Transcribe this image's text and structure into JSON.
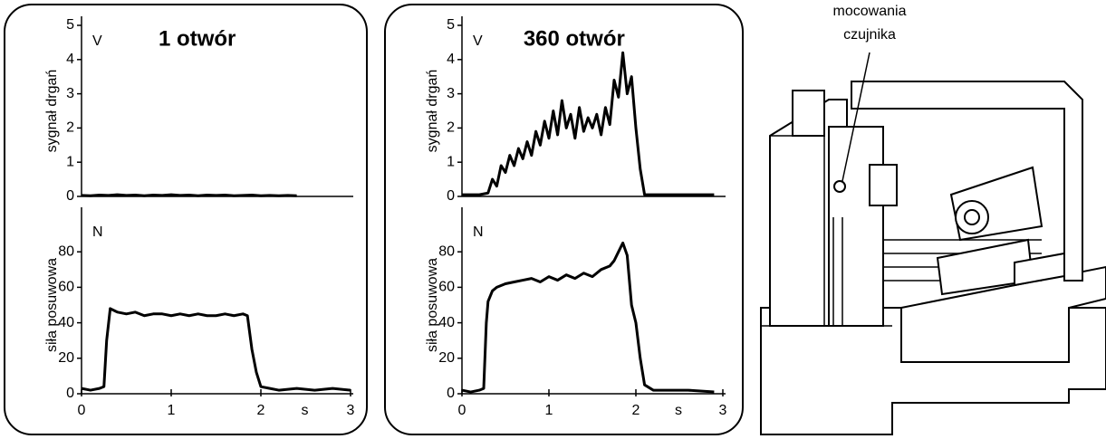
{
  "chart_data": [
    {
      "type": "line",
      "title": "1 otwór",
      "y_label": "sygnał drgań",
      "unit": "V",
      "color": "#000000",
      "xlim": [
        0,
        3
      ],
      "ylim": [
        0,
        5
      ],
      "yticks": [
        0,
        1,
        2,
        3,
        4,
        5
      ],
      "x": [
        0,
        0.1,
        0.2,
        0.3,
        0.4,
        0.5,
        0.6,
        0.7,
        0.8,
        0.9,
        1.0,
        1.1,
        1.2,
        1.3,
        1.4,
        1.5,
        1.6,
        1.7,
        1.8,
        1.9,
        2.0,
        2.1,
        2.2,
        2.3,
        2.4
      ],
      "values": [
        0.03,
        0.02,
        0.04,
        0.03,
        0.05,
        0.03,
        0.04,
        0.02,
        0.04,
        0.03,
        0.05,
        0.03,
        0.04,
        0.02,
        0.04,
        0.03,
        0.04,
        0.02,
        0.03,
        0.04,
        0.02,
        0.03,
        0.02,
        0.03,
        0.02
      ]
    },
    {
      "type": "line",
      "y_label": "siła posuwowa",
      "unit": "N",
      "x_label": "s",
      "color": "#000000",
      "xlim": [
        0,
        3
      ],
      "ylim": [
        0,
        100
      ],
      "xticks": [
        0,
        1,
        2,
        3
      ],
      "yticks": [
        0,
        20,
        40,
        60,
        80
      ],
      "x": [
        0,
        0.1,
        0.2,
        0.25,
        0.28,
        0.32,
        0.4,
        0.5,
        0.6,
        0.7,
        0.8,
        0.9,
        1.0,
        1.1,
        1.2,
        1.3,
        1.4,
        1.5,
        1.6,
        1.7,
        1.8,
        1.85,
        1.9,
        1.95,
        2.0,
        2.1,
        2.2,
        2.4,
        2.6,
        2.8,
        3.0
      ],
      "values": [
        3,
        2,
        3,
        4,
        30,
        48,
        46,
        45,
        46,
        44,
        45,
        45,
        44,
        45,
        44,
        45,
        44,
        44,
        45,
        44,
        45,
        44,
        25,
        12,
        4,
        3,
        2,
        3,
        2,
        3,
        2
      ]
    },
    {
      "type": "line",
      "title": "360 otwór",
      "y_label": "sygnał drgań",
      "unit": "V",
      "color": "#000000",
      "xlim": [
        0,
        3
      ],
      "ylim": [
        0,
        5
      ],
      "yticks": [
        0,
        1,
        2,
        3,
        4,
        5
      ],
      "x": [
        0,
        0.2,
        0.3,
        0.35,
        0.4,
        0.45,
        0.5,
        0.55,
        0.6,
        0.65,
        0.7,
        0.75,
        0.8,
        0.85,
        0.9,
        0.95,
        1.0,
        1.05,
        1.1,
        1.15,
        1.2,
        1.25,
        1.3,
        1.35,
        1.4,
        1.45,
        1.5,
        1.55,
        1.6,
        1.65,
        1.7,
        1.75,
        1.8,
        1.85,
        1.9,
        1.95,
        2.0,
        2.05,
        2.1,
        2.2,
        2.4,
        2.6,
        2.9
      ],
      "values": [
        0.05,
        0.05,
        0.1,
        0.5,
        0.3,
        0.9,
        0.7,
        1.2,
        0.9,
        1.4,
        1.1,
        1.6,
        1.2,
        1.9,
        1.5,
        2.2,
        1.7,
        2.5,
        1.8,
        2.8,
        2.0,
        2.4,
        1.7,
        2.6,
        1.9,
        2.3,
        2.0,
        2.4,
        1.8,
        2.6,
        2.1,
        3.4,
        2.9,
        4.2,
        3.0,
        3.5,
        2.0,
        0.8,
        0.05,
        0.05,
        0.05,
        0.05,
        0.05
      ]
    },
    {
      "type": "line",
      "y_label": "siła posuwowa",
      "unit": "N",
      "x_label": "s",
      "color": "#000000",
      "xlim": [
        0,
        3
      ],
      "ylim": [
        0,
        100
      ],
      "xticks": [
        0,
        1,
        2,
        3
      ],
      "yticks": [
        0,
        20,
        40,
        60,
        80
      ],
      "x": [
        0,
        0.1,
        0.2,
        0.25,
        0.28,
        0.3,
        0.35,
        0.4,
        0.5,
        0.6,
        0.7,
        0.8,
        0.9,
        1.0,
        1.1,
        1.2,
        1.3,
        1.4,
        1.5,
        1.6,
        1.7,
        1.75,
        1.8,
        1.85,
        1.9,
        1.95,
        2.0,
        2.05,
        2.1,
        2.2,
        2.4,
        2.6,
        2.9
      ],
      "values": [
        2,
        1,
        2,
        3,
        40,
        52,
        58,
        60,
        62,
        63,
        64,
        65,
        63,
        66,
        64,
        67,
        65,
        68,
        66,
        70,
        72,
        75,
        80,
        85,
        78,
        50,
        40,
        20,
        5,
        2,
        2,
        2,
        1
      ]
    }
  ],
  "machine_labels": [
    "mocowania",
    "czujnika"
  ]
}
